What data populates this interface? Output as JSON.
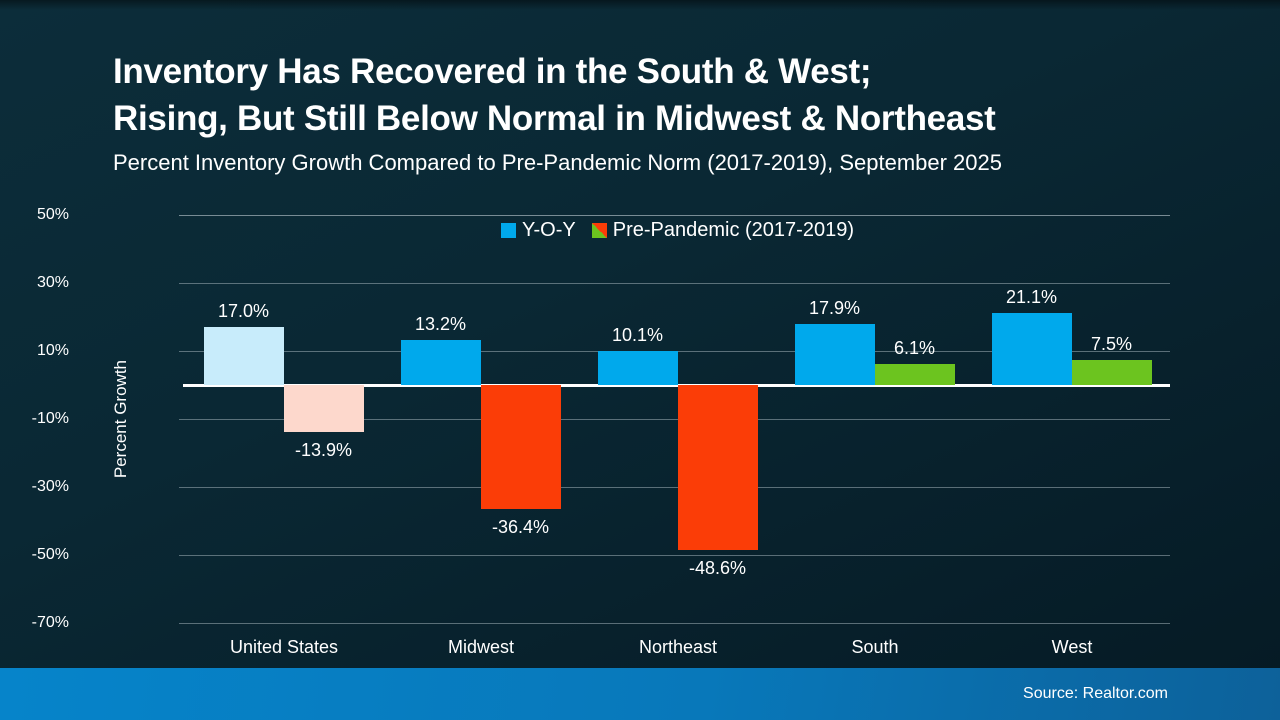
{
  "slide": {
    "title_line1": "Inventory Has Recovered in the South & West;",
    "title_line2": "Rising, But Still Below Normal in Midwest & Northeast",
    "subtitle": "Percent Inventory Growth Compared to Pre-Pandemic Norm (2017-2019), September 2025",
    "source": "Source: Realtor.com"
  },
  "colors": {
    "background_top": "#0c2d3a",
    "background_bottom": "#051a24",
    "footer_left": "#0684ca",
    "footer_right": "#0d619a",
    "yoy_blue": "#00a9ec",
    "yoy_blue_muted": "#c8ecfb",
    "negative_red": "#fb3d07",
    "negative_red_muted": "#fdd8cc",
    "positive_green": "#6cc41f",
    "zero_line": "#ffffff",
    "gridline": "#9eaeb6"
  },
  "chart_data": {
    "type": "bar",
    "title": "Inventory Has Recovered in the South & West; Rising, But Still Below Normal in Midwest & Northeast",
    "subtitle": "Percent Inventory Growth Compared to Pre-Pandemic Norm (2017-2019), September 2025",
    "categories": [
      "United States",
      "Midwest",
      "Northeast",
      "South",
      "West"
    ],
    "series": [
      {
        "name": "Y-O-Y",
        "values": [
          17.0,
          13.2,
          10.1,
          17.9,
          21.1
        ],
        "labels": [
          "17.0%",
          "13.2%",
          "10.1%",
          "17.9%",
          "21.1%"
        ],
        "colors": [
          "#c8ecfb",
          "#00a9ec",
          "#00a9ec",
          "#00a9ec",
          "#00a9ec"
        ],
        "legend_swatch": {
          "style": "solid",
          "color": "#00a9ec"
        }
      },
      {
        "name": "Pre-Pandemic (2017-2019)",
        "values": [
          -13.9,
          -36.4,
          -48.6,
          6.1,
          7.5
        ],
        "labels": [
          "-13.9%",
          "-36.4%",
          "-48.6%",
          "6.1%",
          "7.5%"
        ],
        "colors": [
          "#fdd8cc",
          "#fb3d07",
          "#fb3d07",
          "#6cc41f",
          "#6cc41f"
        ],
        "legend_swatch": {
          "style": "diagonal-split",
          "color_bottom_left": "#6cc41f",
          "color_top_right": "#fb3d07"
        }
      }
    ],
    "xlabel": "",
    "ylabel": "Percent Growth",
    "ylim": [
      -70,
      50
    ],
    "yticks": [
      50,
      30,
      10,
      -10,
      -30,
      -50,
      -70
    ],
    "ytick_labels": [
      "50%",
      "30%",
      "10%",
      "-10%",
      "-30%",
      "-50%",
      "-70%"
    ],
    "grid": true,
    "legend_position": "top-center"
  }
}
